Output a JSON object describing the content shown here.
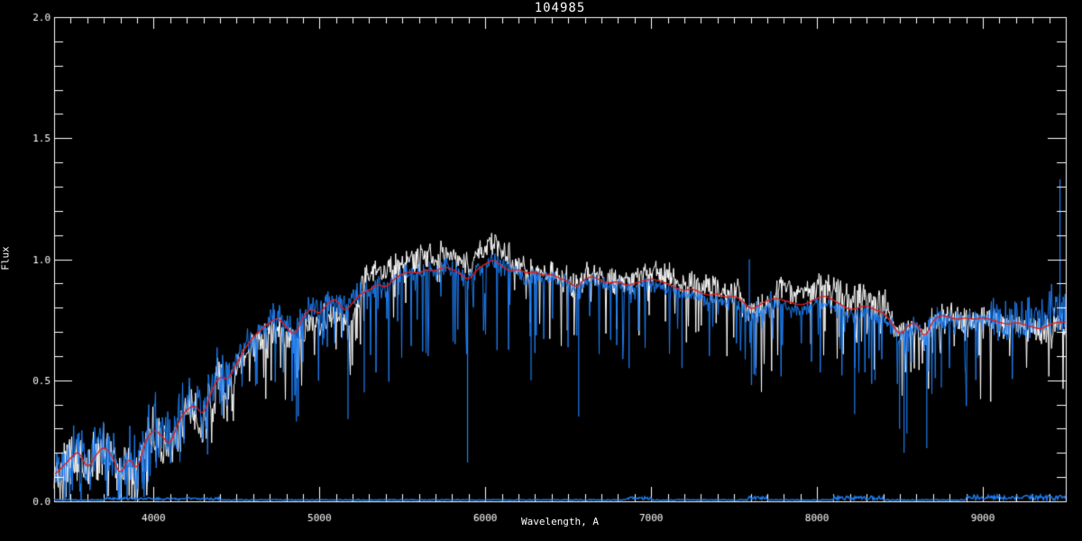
{
  "chart_data": {
    "type": "line",
    "title": "104985",
    "xlabel": "Wavelength, A",
    "ylabel": "Flux",
    "xlim": [
      3400,
      9500
    ],
    "ylim": [
      0.0,
      2.0
    ],
    "grid": false,
    "legend": "none",
    "background_color": "#000000",
    "axis_color": "#ffffff",
    "x_major_ticks": {
      "values": [
        4000,
        5000,
        6000,
        7000,
        8000,
        9000
      ],
      "labels": [
        "4000",
        "5000",
        "6000",
        "7000",
        "8000",
        "9000"
      ]
    },
    "x_minor_step": 100,
    "y_major_ticks": {
      "values": [
        0.0,
        0.5,
        1.0,
        1.5,
        2.0
      ],
      "labels": [
        "0.0",
        "0.5",
        "1.0",
        "1.5",
        "2.0"
      ]
    },
    "y_minor_step": 0.1,
    "series": [
      {
        "name": "observed-spectrum-white",
        "color": "#ffffff",
        "style": "noisy-line"
      },
      {
        "name": "observed-spectrum-blue",
        "color": "#1e7df0",
        "style": "noisy-line"
      },
      {
        "name": "model-fit-red",
        "color": "#dd1f1f",
        "style": "smooth-line"
      },
      {
        "name": "error-spectrum-blue",
        "color": "#1e7df0",
        "style": "baseline"
      }
    ],
    "model": {
      "wavelength_start": 3400,
      "wavelength_step": 50,
      "flux": [
        0.11,
        0.14,
        0.18,
        0.21,
        0.13,
        0.19,
        0.23,
        0.19,
        0.1,
        0.19,
        0.12,
        0.25,
        0.3,
        0.27,
        0.23,
        0.33,
        0.38,
        0.4,
        0.35,
        0.46,
        0.52,
        0.5,
        0.57,
        0.63,
        0.68,
        0.71,
        0.74,
        0.76,
        0.72,
        0.68,
        0.76,
        0.8,
        0.77,
        0.82,
        0.84,
        0.78,
        0.82,
        0.86,
        0.87,
        0.9,
        0.88,
        0.92,
        0.94,
        0.95,
        0.94,
        0.96,
        0.95,
        0.97,
        0.96,
        0.94,
        0.91,
        0.96,
        0.98,
        1.0,
        0.97,
        0.95,
        0.96,
        0.94,
        0.95,
        0.93,
        0.94,
        0.92,
        0.91,
        0.88,
        0.92,
        0.93,
        0.91,
        0.9,
        0.91,
        0.89,
        0.9,
        0.91,
        0.92,
        0.91,
        0.9,
        0.88,
        0.87,
        0.88,
        0.86,
        0.85,
        0.86,
        0.84,
        0.85,
        0.83,
        0.79,
        0.81,
        0.83,
        0.84,
        0.83,
        0.82,
        0.81,
        0.82,
        0.84,
        0.85,
        0.83,
        0.81,
        0.79,
        0.8,
        0.81,
        0.79,
        0.78,
        0.74,
        0.68,
        0.73,
        0.74,
        0.67,
        0.75,
        0.77,
        0.76,
        0.75,
        0.76,
        0.75,
        0.76,
        0.75,
        0.74,
        0.73,
        0.74,
        0.73,
        0.72,
        0.71,
        0.73,
        0.74,
        0.74
      ]
    },
    "noise_regions": [
      {
        "from": 3400,
        "to": 4450,
        "white": [
          0.93,
          0.1,
          0.15,
          0.22
        ],
        "blue": [
          1.04,
          0.11,
          0.12,
          0.25
        ]
      },
      {
        "from": 4450,
        "to": 5250,
        "white": [
          0.94,
          0.06,
          0.12,
          0.3
        ],
        "blue": [
          1.02,
          0.05,
          0.15,
          0.35
        ]
      },
      {
        "from": 5250,
        "to": 6150,
        "white": [
          1.065,
          0.045,
          0.06,
          0.25
        ],
        "blue": [
          0.995,
          0.035,
          0.14,
          0.4
        ]
      },
      {
        "from": 6150,
        "to": 6900,
        "white": [
          1.01,
          0.05,
          0.09,
          0.3
        ],
        "blue": [
          0.985,
          0.03,
          0.12,
          0.3
        ]
      },
      {
        "from": 6900,
        "to": 7550,
        "white": [
          1.035,
          0.045,
          0.08,
          0.28
        ],
        "blue": [
          0.975,
          0.028,
          0.09,
          0.25
        ]
      },
      {
        "from": 7550,
        "to": 7750,
        "white": [
          0.99,
          0.055,
          0.2,
          0.4
        ],
        "blue": [
          0.965,
          0.045,
          0.16,
          0.3
        ]
      },
      {
        "from": 7750,
        "to": 8450,
        "white": [
          1.06,
          0.05,
          0.1,
          0.35
        ],
        "blue": [
          0.97,
          0.032,
          0.1,
          0.3
        ]
      },
      {
        "from": 8450,
        "to": 9050,
        "white": [
          1.0,
          0.05,
          0.12,
          0.35
        ],
        "blue": [
          0.985,
          0.04,
          0.12,
          0.35
        ]
      },
      {
        "from": 9050,
        "to": 9501,
        "white": [
          0.99,
          0.055,
          0.08,
          0.25
        ],
        "blue": [
          1.0,
          0.08,
          0.06,
          0.25
        ]
      }
    ],
    "absorption_lines": [
      {
        "wl": 3933,
        "bottom": 0.05
      },
      {
        "wl": 3968,
        "bottom": 0.08
      },
      {
        "wl": 4861,
        "bottom": 0.33
      },
      {
        "wl": 5172,
        "bottom": 0.34
      },
      {
        "wl": 5270,
        "bottom": 0.45
      },
      {
        "wl": 5893,
        "bottom": 0.16
      },
      {
        "wl": 6276,
        "bottom": 0.5
      },
      {
        "wl": 6563,
        "bottom": 0.35
      },
      {
        "wl": 6867,
        "bottom": 0.55
      },
      {
        "wl": 7186,
        "bottom": 0.55
      },
      {
        "wl": 7605,
        "bottom": 0.48
      },
      {
        "wl": 7630,
        "bottom": 0.52
      },
      {
        "wl": 8227,
        "bottom": 0.36
      },
      {
        "wl": 8350,
        "bottom": 0.5
      },
      {
        "wl": 8498,
        "bottom": 0.3
      },
      {
        "wl": 8525,
        "bottom": 0.2
      },
      {
        "wl": 8542,
        "bottom": 0.28
      },
      {
        "wl": 8662,
        "bottom": 0.22
      },
      {
        "wl": 8750,
        "bottom": 0.47
      }
    ],
    "emission_spikes": [
      {
        "wl": 9465,
        "top": 1.33
      },
      {
        "wl": 7592,
        "top": 1.0
      }
    ],
    "error_line": {
      "baseline": 0.004,
      "bumps": [
        {
          "from": 3700,
          "to": 4400,
          "height": 0.01
        },
        {
          "from": 6850,
          "to": 7000,
          "height": 0.012
        },
        {
          "from": 7580,
          "to": 7700,
          "height": 0.016
        },
        {
          "from": 8100,
          "to": 8400,
          "height": 0.016
        },
        {
          "from": 8900,
          "to": 9500,
          "height": 0.02
        }
      ]
    },
    "seed": 7
  }
}
